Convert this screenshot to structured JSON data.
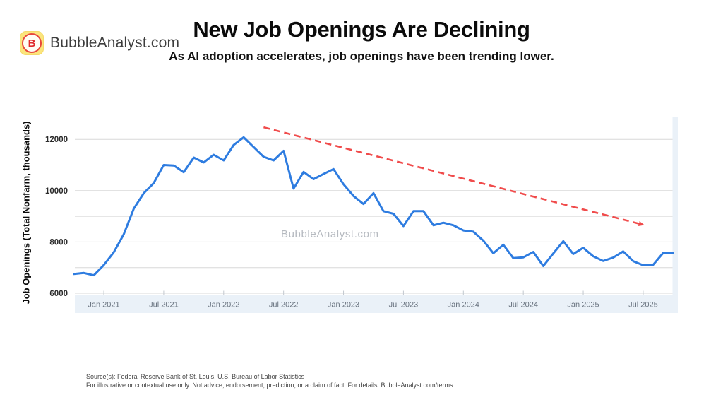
{
  "brand": {
    "name": "BubbleAnalyst.com",
    "badge_letter": "B"
  },
  "title": "New Job Openings Are Declining",
  "subtitle": "As AI adoption accelerates, job openings have been trending lower.",
  "watermark": "BubbleAnalyst.com",
  "footer": {
    "source": "Source(s): Federal Reserve Bank of St. Louis, U.S. Bureau of Labor Statistics",
    "disclaimer": "For illustrative or contextual use only. Not advice, endorsement, prediction, or a claim of fact. For details: BubbleAnalyst.com/terms"
  },
  "colors": {
    "line": "#2e7ce0",
    "trend": "#f04b4b",
    "grid": "#d8d8d8",
    "axis_band": "#eaf1f8",
    "tick_mark": "#c2c8cf",
    "x_tick_text": "#6a7480",
    "y_tick_text": "#2b2b2b",
    "brand_badge_bg": "#fbe57d",
    "brand_badge_letter": "#e02c2c"
  },
  "chart_data": {
    "type": "line",
    "title": "New Job Openings Are Declining",
    "xlabel": "",
    "ylabel": "Job Openings (Total Nonfarm, thousands)",
    "ylim": [
      6000,
      12880
    ],
    "y_ticks": [
      6000,
      8000,
      10000,
      12000
    ],
    "y_gridlines": [
      6000,
      7000,
      8000,
      9000,
      10000,
      11000,
      12000
    ],
    "x_tick_labels": [
      "Jan 2021",
      "Jul 2021",
      "Jan 2022",
      "Jul 2022",
      "Jan 2023",
      "Jul 2023",
      "Jan 2024",
      "Jul 2024",
      "Jan 2025",
      "Jul 2025"
    ],
    "grid": true,
    "legend": false,
    "x": [
      "Oct 2020",
      "Nov 2020",
      "Dec 2020",
      "Jan 2021",
      "Feb 2021",
      "Mar 2021",
      "Apr 2021",
      "May 2021",
      "Jun 2021",
      "Jul 2021",
      "Aug 2021",
      "Sep 2021",
      "Oct 2021",
      "Nov 2021",
      "Dec 2021",
      "Jan 2022",
      "Feb 2022",
      "Mar 2022",
      "Apr 2022",
      "May 2022",
      "Jun 2022",
      "Jul 2022",
      "Aug 2022",
      "Sep 2022",
      "Oct 2022",
      "Nov 2022",
      "Dec 2022",
      "Jan 2023",
      "Feb 2023",
      "Mar 2023",
      "Apr 2023",
      "May 2023",
      "Jun 2023",
      "Jul 2023",
      "Aug 2023",
      "Sep 2023",
      "Oct 2023",
      "Nov 2023",
      "Dec 2023",
      "Jan 2024",
      "Feb 2024",
      "Mar 2024",
      "Apr 2024",
      "May 2024",
      "Jun 2024",
      "Jul 2024",
      "Aug 2024",
      "Sep 2024",
      "Oct 2024",
      "Nov 2024",
      "Dec 2024",
      "Jan 2025",
      "Feb 2025",
      "Mar 2025",
      "Apr 2025",
      "May 2025",
      "Jun 2025",
      "Jul 2025",
      "Aug 2025",
      "Sep 2025",
      "Oct 2025"
    ],
    "series": [
      {
        "name": "Job Openings (Total Nonfarm, thousands)",
        "color": "#2e7ce0",
        "values": [
          6750,
          6790,
          6700,
          7100,
          7600,
          8300,
          9300,
          9900,
          10300,
          11000,
          10980,
          10720,
          11290,
          11100,
          11400,
          11180,
          11780,
          12080,
          11700,
          11320,
          11180,
          11550,
          10080,
          10730,
          10450,
          10650,
          10840,
          10250,
          9790,
          9480,
          9900,
          9200,
          9100,
          8620,
          9200,
          9200,
          8650,
          8750,
          8650,
          8450,
          8400,
          8050,
          7560,
          7890,
          7370,
          7400,
          7610,
          7060,
          7550,
          8030,
          7530,
          7770,
          7440,
          7260,
          7390,
          7630,
          7250,
          7090,
          7110,
          7570,
          7570
        ]
      }
    ],
    "trend_arrow": {
      "style": "dashed",
      "color": "#f04b4b",
      "start": {
        "x": "May 2022",
        "value": 12470
      },
      "end": {
        "x": "Jul 2025",
        "value": 8670
      }
    }
  }
}
